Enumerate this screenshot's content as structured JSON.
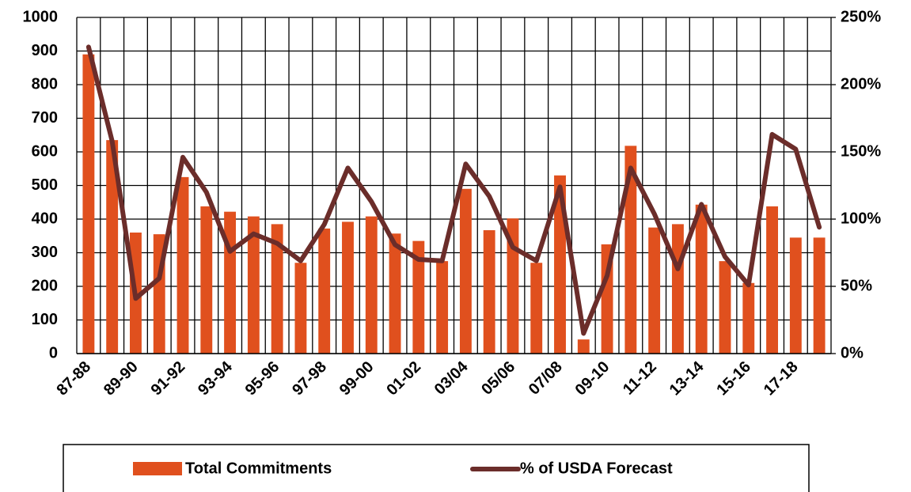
{
  "chart_data": {
    "type": "bar-line",
    "categories": [
      "87-88",
      null,
      "89-90",
      null,
      "91-92",
      null,
      "93-94",
      null,
      "95-96",
      null,
      "97-98",
      null,
      "99-00",
      null,
      "01-02",
      null,
      "03/04",
      null,
      "05/06",
      null,
      "07/08",
      null,
      "09-10",
      null,
      "11-12",
      null,
      "13-14",
      null,
      "15-16",
      null,
      "17-18",
      null
    ],
    "series": [
      {
        "name": "Total Commitments",
        "type": "bar",
        "color": "#e0501e",
        "values": [
          890,
          635,
          360,
          355,
          525,
          438,
          422,
          408,
          385,
          270,
          372,
          392,
          408,
          357,
          335,
          275,
          490,
          367,
          402,
          270,
          530,
          42,
          325,
          618,
          375,
          385,
          443,
          275,
          210,
          438,
          345,
          345
        ]
      },
      {
        "name": "% of USDA Forecast",
        "type": "line",
        "axis": "y2",
        "color": "#6b2d2a",
        "values": [
          228,
          158,
          41,
          56,
          146,
          120,
          76,
          89,
          82,
          69,
          96,
          138,
          113,
          81,
          70,
          69,
          141,
          117,
          79,
          69,
          124,
          15,
          58,
          138,
          104,
          63,
          111,
          72,
          51,
          163,
          152,
          94
        ]
      }
    ],
    "ylim": [
      0,
      1000
    ],
    "yticks": [
      0,
      100,
      200,
      300,
      400,
      500,
      600,
      700,
      800,
      900,
      1000
    ],
    "y2lim": [
      0,
      250
    ],
    "y2ticks": [
      {
        "value": 0,
        "label": "0%"
      },
      {
        "value": 50,
        "label": "50%"
      },
      {
        "value": 100,
        "label": "100%"
      },
      {
        "value": 150,
        "label": "150%"
      },
      {
        "value": 200,
        "label": "200%"
      },
      {
        "value": 250,
        "label": "250%"
      }
    ],
    "grid": true,
    "legend": "bottom"
  }
}
